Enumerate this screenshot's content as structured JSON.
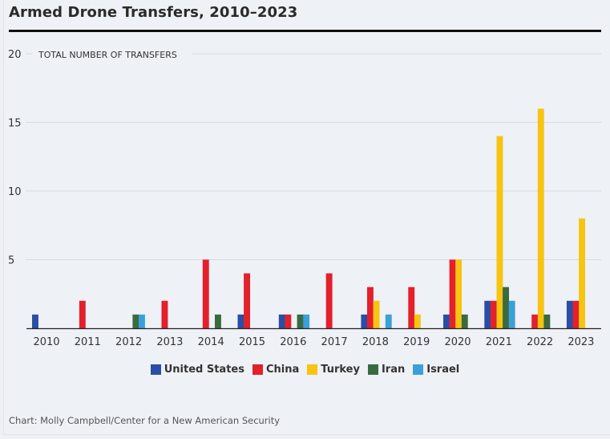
{
  "chart_data": {
    "type": "bar",
    "title": "Armed Drone Transfers, 2010–2023",
    "ylabel": "TOTAL NUMBER OF TRANSFERS",
    "xlabel": "",
    "ylim": [
      0,
      20
    ],
    "yticks": [
      5,
      10,
      15,
      20
    ],
    "grid": true,
    "legend_position": "bottom",
    "categories": [
      "2010",
      "2011",
      "2012",
      "2013",
      "2014",
      "2015",
      "2016",
      "2017",
      "2018",
      "2019",
      "2020",
      "2021",
      "2022",
      "2023"
    ],
    "series": [
      {
        "name": "United States",
        "color": "#2a4ea6",
        "values": [
          1,
          0,
          0,
          0,
          0,
          1,
          1,
          0,
          1,
          0,
          1,
          2,
          0,
          2
        ]
      },
      {
        "name": "China",
        "color": "#e3202b",
        "values": [
          0,
          2,
          0,
          2,
          5,
          4,
          1,
          4,
          3,
          3,
          5,
          2,
          1,
          2
        ]
      },
      {
        "name": "Turkey",
        "color": "#f7c411",
        "values": [
          0,
          0,
          0,
          0,
          0,
          0,
          0,
          0,
          2,
          1,
          5,
          14,
          16,
          8
        ]
      },
      {
        "name": "Iran",
        "color": "#3a6b3e",
        "values": [
          0,
          0,
          1,
          0,
          1,
          0,
          1,
          0,
          0,
          0,
          1,
          3,
          1,
          0
        ]
      },
      {
        "name": "Israel",
        "color": "#3ba0d8",
        "values": [
          0,
          0,
          1,
          0,
          0,
          0,
          1,
          0,
          1,
          0,
          0,
          2,
          0,
          0
        ]
      }
    ],
    "source": "Chart: Molly Campbell/Center for a New American Security"
  }
}
